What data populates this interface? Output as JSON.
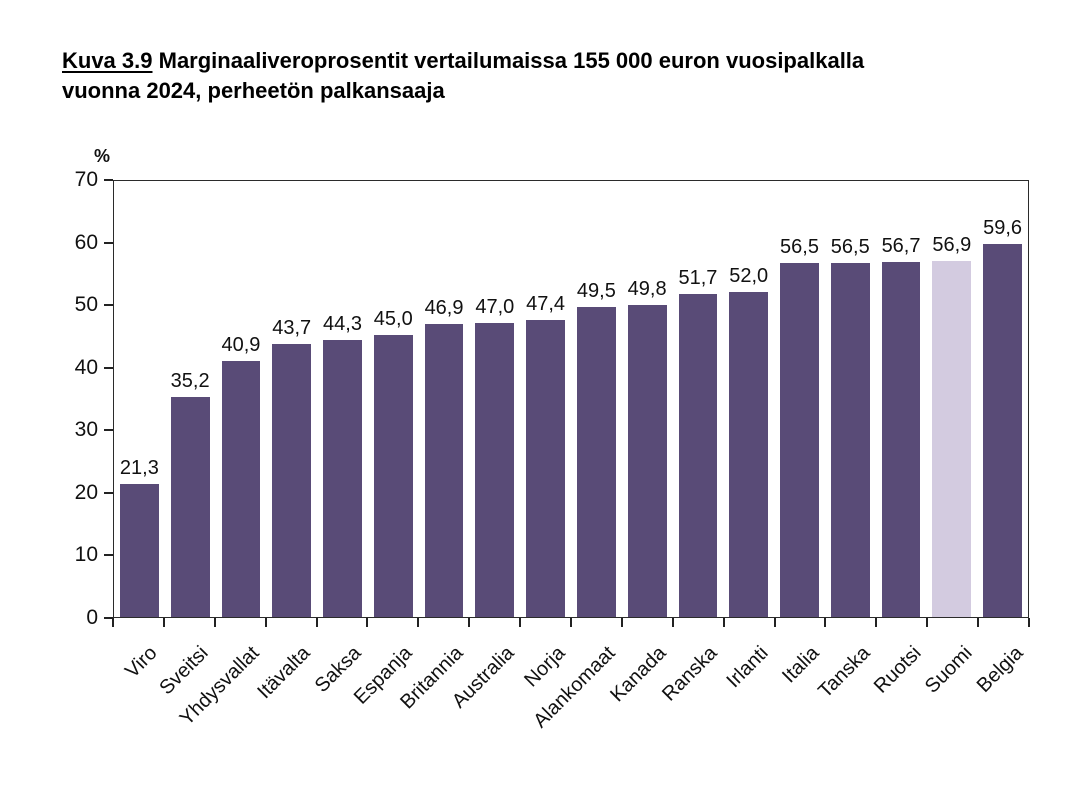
{
  "title": {
    "figure_label": "Kuva 3.9",
    "line1": "Marginaaliveroprosentit vertailumaissa 155 000 euron vuosipalkalla",
    "line2": "vuonna 2024, perheetön palkansaaja"
  },
  "chart_data": {
    "type": "bar",
    "title": "Kuva 3.9 Marginaaliveroprosentit vertailumaissa 155 000 euron vuosipalkalla vuonna 2024, perheetön palkansaaja",
    "unit_label": "%",
    "xlabel": "",
    "ylabel": "%",
    "ylim": [
      0,
      70
    ],
    "yticks": [
      0,
      10,
      20,
      30,
      40,
      50,
      60,
      70
    ],
    "grid": false,
    "legend_position": "none",
    "categories": [
      "Viro",
      "Sveitsi",
      "Yhdysvallat",
      "Itävalta",
      "Saksa",
      "Espanja",
      "Britannia",
      "Australia",
      "Norja",
      "Alankomaat",
      "Kanada",
      "Ranska",
      "Irlanti",
      "Italia",
      "Tanska",
      "Ruotsi",
      "Suomi",
      "Belgia"
    ],
    "values": [
      21.3,
      35.2,
      40.9,
      43.7,
      44.3,
      45.0,
      46.9,
      47.0,
      47.4,
      49.5,
      49.8,
      51.7,
      52.0,
      56.5,
      56.5,
      56.7,
      56.9,
      59.6
    ],
    "value_labels": [
      "21,3",
      "35,2",
      "40,9",
      "43,7",
      "44,3",
      "45,0",
      "46,9",
      "47,0",
      "47,4",
      "49,5",
      "49,8",
      "51,7",
      "52,0",
      "56,5",
      "56,5",
      "56,7",
      "56,9",
      "59,6"
    ],
    "highlight_category": "Suomi",
    "highlight_index": 16,
    "colors": {
      "bar": "#594b77",
      "highlight_bar": "#d3cbe0",
      "axis": "#222222",
      "text": "#111111"
    }
  }
}
